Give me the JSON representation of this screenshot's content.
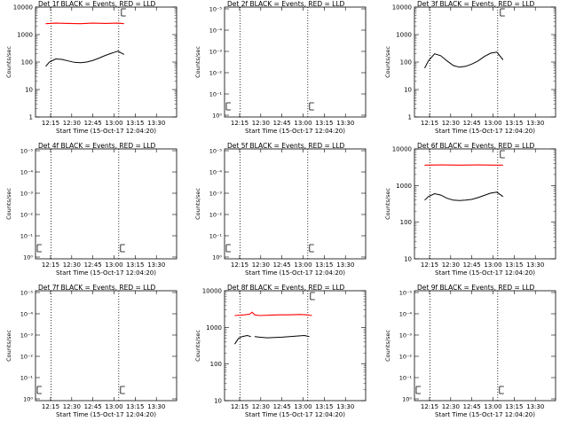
{
  "chart_data": [
    {
      "type": "line",
      "title": "Det 1f BLACK = Events, RED = LLD",
      "xlabel": "Start Time (15-Oct-17 12:04:20)",
      "ylabel": "Counts/sec",
      "x_ticks": [
        "12:15",
        "12:30",
        "12:45",
        "13:00",
        "13:15",
        "13:30"
      ],
      "y_ticks": [
        "1",
        "10",
        "100",
        "1000",
        "10000"
      ],
      "scale": "log",
      "ylim": [
        1,
        10000
      ],
      "xlim_minutes": [
        0,
        100
      ],
      "markers_minutes": [
        11,
        59
      ],
      "series": [
        {
          "color": "#000000",
          "x": [
            0,
            3,
            8,
            13,
            18,
            23,
            28,
            33,
            38,
            43,
            48,
            53,
            58,
            63
          ],
          "y": [
            70,
            100,
            130,
            125,
            110,
            98,
            95,
            100,
            115,
            140,
            175,
            210,
            250,
            190
          ]
        },
        {
          "color": "#ff0000",
          "x": [
            0,
            8,
            18,
            28,
            38,
            48,
            58,
            63
          ],
          "y": [
            2500,
            2600,
            2550,
            2500,
            2600,
            2550,
            2600,
            2500
          ]
        }
      ]
    },
    {
      "type": "line",
      "title": "Det 2f BLACK = Events, RED = LLD",
      "xlabel": "Start Time (15-Oct-17 12:04:20)",
      "ylabel": "Counts/sec",
      "x_ticks": [
        "12:15",
        "12:30",
        "12:45",
        "13:00",
        "13:15",
        "13:30"
      ],
      "y_ticks": [
        "10⁰",
        "10⁻¹",
        "10⁻²",
        "10⁻³",
        "10⁻⁴",
        "10⁻⁵"
      ],
      "scale": "empty",
      "markers_minutes": [
        11,
        59
      ],
      "series": []
    },
    {
      "type": "line",
      "title": "Det 3f BLACK = Events, RED = LLD",
      "xlabel": "Start Time (15-Oct-17 12:04:20)",
      "ylabel": "Counts/sec",
      "x_ticks": [
        "12:15",
        "12:30",
        "12:45",
        "13:00",
        "13:15",
        "13:30"
      ],
      "y_ticks": [
        "1",
        "10",
        "100",
        "1000",
        "10000"
      ],
      "scale": "log",
      "ylim": [
        1,
        10000
      ],
      "xlim_minutes": [
        0,
        100
      ],
      "markers_minutes": [
        11,
        59
      ],
      "series": [
        {
          "color": "#000000",
          "x": [
            0,
            3,
            8,
            13,
            18,
            23,
            28,
            33,
            38,
            43,
            48,
            53,
            58,
            63
          ],
          "y": [
            60,
            110,
            200,
            170,
            110,
            75,
            65,
            70,
            85,
            110,
            160,
            210,
            230,
            120
          ]
        }
      ]
    },
    {
      "type": "line",
      "title": "Det 4f BLACK = Events, RED = LLD",
      "xlabel": "Start Time (15-Oct-17 12:04:20)",
      "ylabel": "Counts/sec",
      "x_ticks": [
        "12:15",
        "12:30",
        "12:45",
        "13:00",
        "13:15",
        "13:30"
      ],
      "y_ticks": [
        "10⁰",
        "10⁻¹",
        "10⁻²",
        "10⁻³",
        "10⁻⁴",
        "10⁻⁵"
      ],
      "scale": "empty",
      "markers_minutes": [
        11,
        59
      ],
      "series": []
    },
    {
      "type": "line",
      "title": "Det 5f BLACK = Events, RED = LLD",
      "xlabel": "Start Time (15-Oct-17 12:04:20)",
      "ylabel": "Counts/sec",
      "x_ticks": [
        "12:15",
        "12:30",
        "12:45",
        "13:00",
        "13:15",
        "13:30"
      ],
      "y_ticks": [
        "10⁰",
        "10⁻¹",
        "10⁻²",
        "10⁻³",
        "10⁻⁴",
        "10⁻⁵"
      ],
      "scale": "empty",
      "markers_minutes": [
        11,
        59
      ],
      "series": []
    },
    {
      "type": "line",
      "title": "Det 6f BLACK = Events, RED = LLD",
      "xlabel": "Start Time (15-Oct-17 12:04:20)",
      "ylabel": "Counts/sec",
      "x_ticks": [
        "12:15",
        "12:30",
        "12:45",
        "13:00",
        "13:15",
        "13:30"
      ],
      "y_ticks": [
        "10",
        "100",
        "1000",
        "10000"
      ],
      "scale": "log",
      "ylim": [
        10,
        10000
      ],
      "xlim_minutes": [
        0,
        100
      ],
      "markers_minutes": [
        11,
        59
      ],
      "series": [
        {
          "color": "#000000",
          "x": [
            0,
            3,
            8,
            13,
            18,
            23,
            28,
            33,
            38,
            43,
            48,
            53,
            58,
            63
          ],
          "y": [
            400,
            500,
            600,
            550,
            450,
            400,
            390,
            400,
            420,
            470,
            540,
            620,
            660,
            500
          ]
        },
        {
          "color": "#ff0000",
          "x": [
            0,
            13,
            28,
            43,
            58,
            63
          ],
          "y": [
            3600,
            3650,
            3600,
            3650,
            3600,
            3600
          ]
        }
      ]
    },
    {
      "type": "line",
      "title": "Det 7f BLACK = Events, RED = LLD",
      "xlabel": "Start Time (15-Oct-17 12:04:20)",
      "ylabel": "Counts/sec",
      "x_ticks": [
        "12:15",
        "12:30",
        "12:45",
        "13:00",
        "13:15",
        "13:30"
      ],
      "y_ticks": [
        "10⁰",
        "10⁻¹",
        "10⁻²",
        "10⁻³",
        "10⁻⁴",
        "10⁻⁵"
      ],
      "scale": "empty",
      "markers_minutes": [
        11,
        59
      ],
      "series": []
    },
    {
      "type": "line",
      "title": "Det 8f BLACK = Events, RED = LLD",
      "xlabel": "Start Time (15-Oct-17 12:04:20)",
      "ylabel": "Counts/sec",
      "x_ticks": [
        "12:15",
        "12:30",
        "12:45",
        "13:00",
        "13:15",
        "13:30"
      ],
      "y_ticks": [
        "10",
        "100",
        "1000",
        "10000"
      ],
      "scale": "log",
      "ylim": [
        10,
        10000
      ],
      "xlim_minutes": [
        0,
        100
      ],
      "markers_minutes": [
        11,
        59
      ],
      "series": [
        {
          "color": "#000000",
          "x": [
            0,
            3,
            6,
            10,
            13
          ],
          "y": [
            350,
            500,
            560,
            600,
            560
          ]
        },
        {
          "color": "#000000",
          "x": [
            16,
            20,
            26,
            32,
            38,
            44,
            50,
            56,
            60
          ],
          "y": [
            560,
            540,
            520,
            530,
            540,
            560,
            580,
            600,
            560
          ]
        },
        {
          "color": "#ff0000",
          "x": [
            0,
            8,
            12,
            14,
            16,
            20,
            28,
            36,
            44,
            52,
            58,
            62
          ],
          "y": [
            2100,
            2200,
            2300,
            2600,
            2200,
            2100,
            2150,
            2200,
            2200,
            2250,
            2200,
            2100
          ]
        }
      ]
    },
    {
      "type": "line",
      "title": "Det 9f BLACK = Events, RED = LLD",
      "xlabel": "Start Time (15-Oct-17 12:04:20)",
      "ylabel": "Counts/sec",
      "x_ticks": [
        "12:15",
        "12:30",
        "12:45",
        "13:00",
        "13:15",
        "13:30"
      ],
      "y_ticks": [
        "10⁰",
        "10⁻¹",
        "10⁻²",
        "10⁻³",
        "10⁻⁴",
        "10⁻⁵"
      ],
      "scale": "empty",
      "markers_minutes": [
        11,
        59
      ],
      "series": []
    }
  ]
}
